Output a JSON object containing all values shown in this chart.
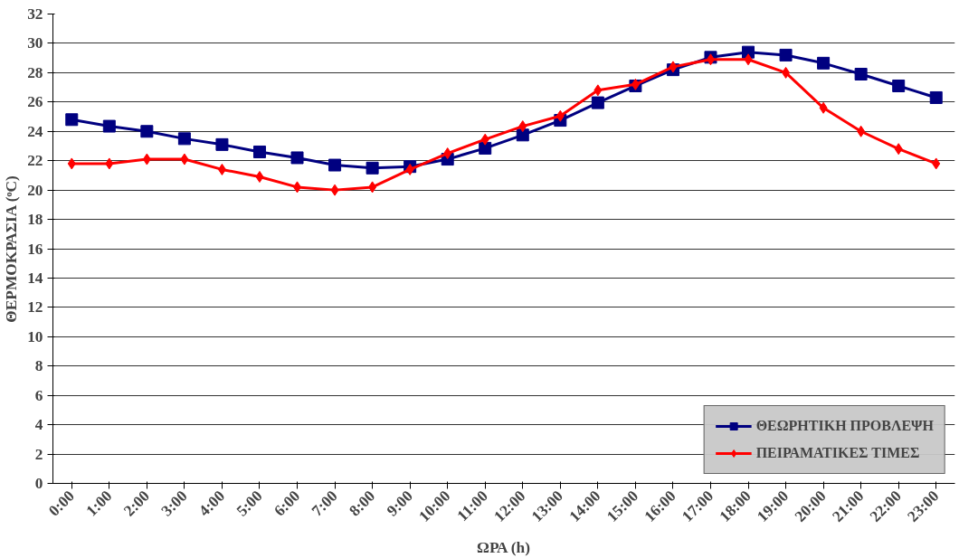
{
  "chart_data": {
    "type": "line",
    "xlabel": "ΩΡΑ (h)",
    "ylabel": "ΘΕΡΜΟΚΡΑΣΙΑ (ᵒC)",
    "categories": [
      "0:00",
      "1:00",
      "2:00",
      "3:00",
      "4:00",
      "5:00",
      "6:00",
      "7:00",
      "8:00",
      "9:00",
      "10:00",
      "11:00",
      "12:00",
      "13:00",
      "14:00",
      "15:00",
      "16:00",
      "17:00",
      "18:00",
      "19:00",
      "20:00",
      "21:00",
      "22:00",
      "23:00"
    ],
    "series": [
      {
        "name": "ΘΕΩΡΗΤΙΚΗ ΠΡΟΒΛΕΨΗ",
        "color": "#000080",
        "marker": "square",
        "values": [
          24.8,
          24.35,
          24.0,
          23.5,
          23.1,
          22.6,
          22.2,
          21.7,
          21.5,
          21.6,
          22.1,
          22.85,
          23.75,
          24.75,
          25.95,
          27.1,
          28.2,
          29.05,
          29.4,
          29.2,
          28.65,
          27.9,
          27.1,
          26.3
        ]
      },
      {
        "name": "ΠΕΙΡΑΜΑΤΙΚΕΣ ΤΙΜΕΣ",
        "color": "#ff0000",
        "marker": "diamond",
        "values": [
          21.8,
          21.8,
          22.1,
          22.1,
          21.4,
          20.9,
          20.2,
          20.0,
          20.2,
          21.4,
          22.5,
          23.45,
          24.35,
          25.05,
          26.8,
          27.2,
          28.4,
          28.9,
          28.9,
          28.0,
          25.6,
          24.0,
          22.8,
          21.8
        ]
      }
    ],
    "ylim": [
      0,
      32
    ],
    "yticks": [
      0,
      2,
      4,
      6,
      8,
      10,
      12,
      14,
      16,
      18,
      20,
      22,
      24,
      26,
      28,
      30,
      32
    ],
    "grid": "y",
    "legend": "bottom right",
    "line_style": "solid"
  }
}
